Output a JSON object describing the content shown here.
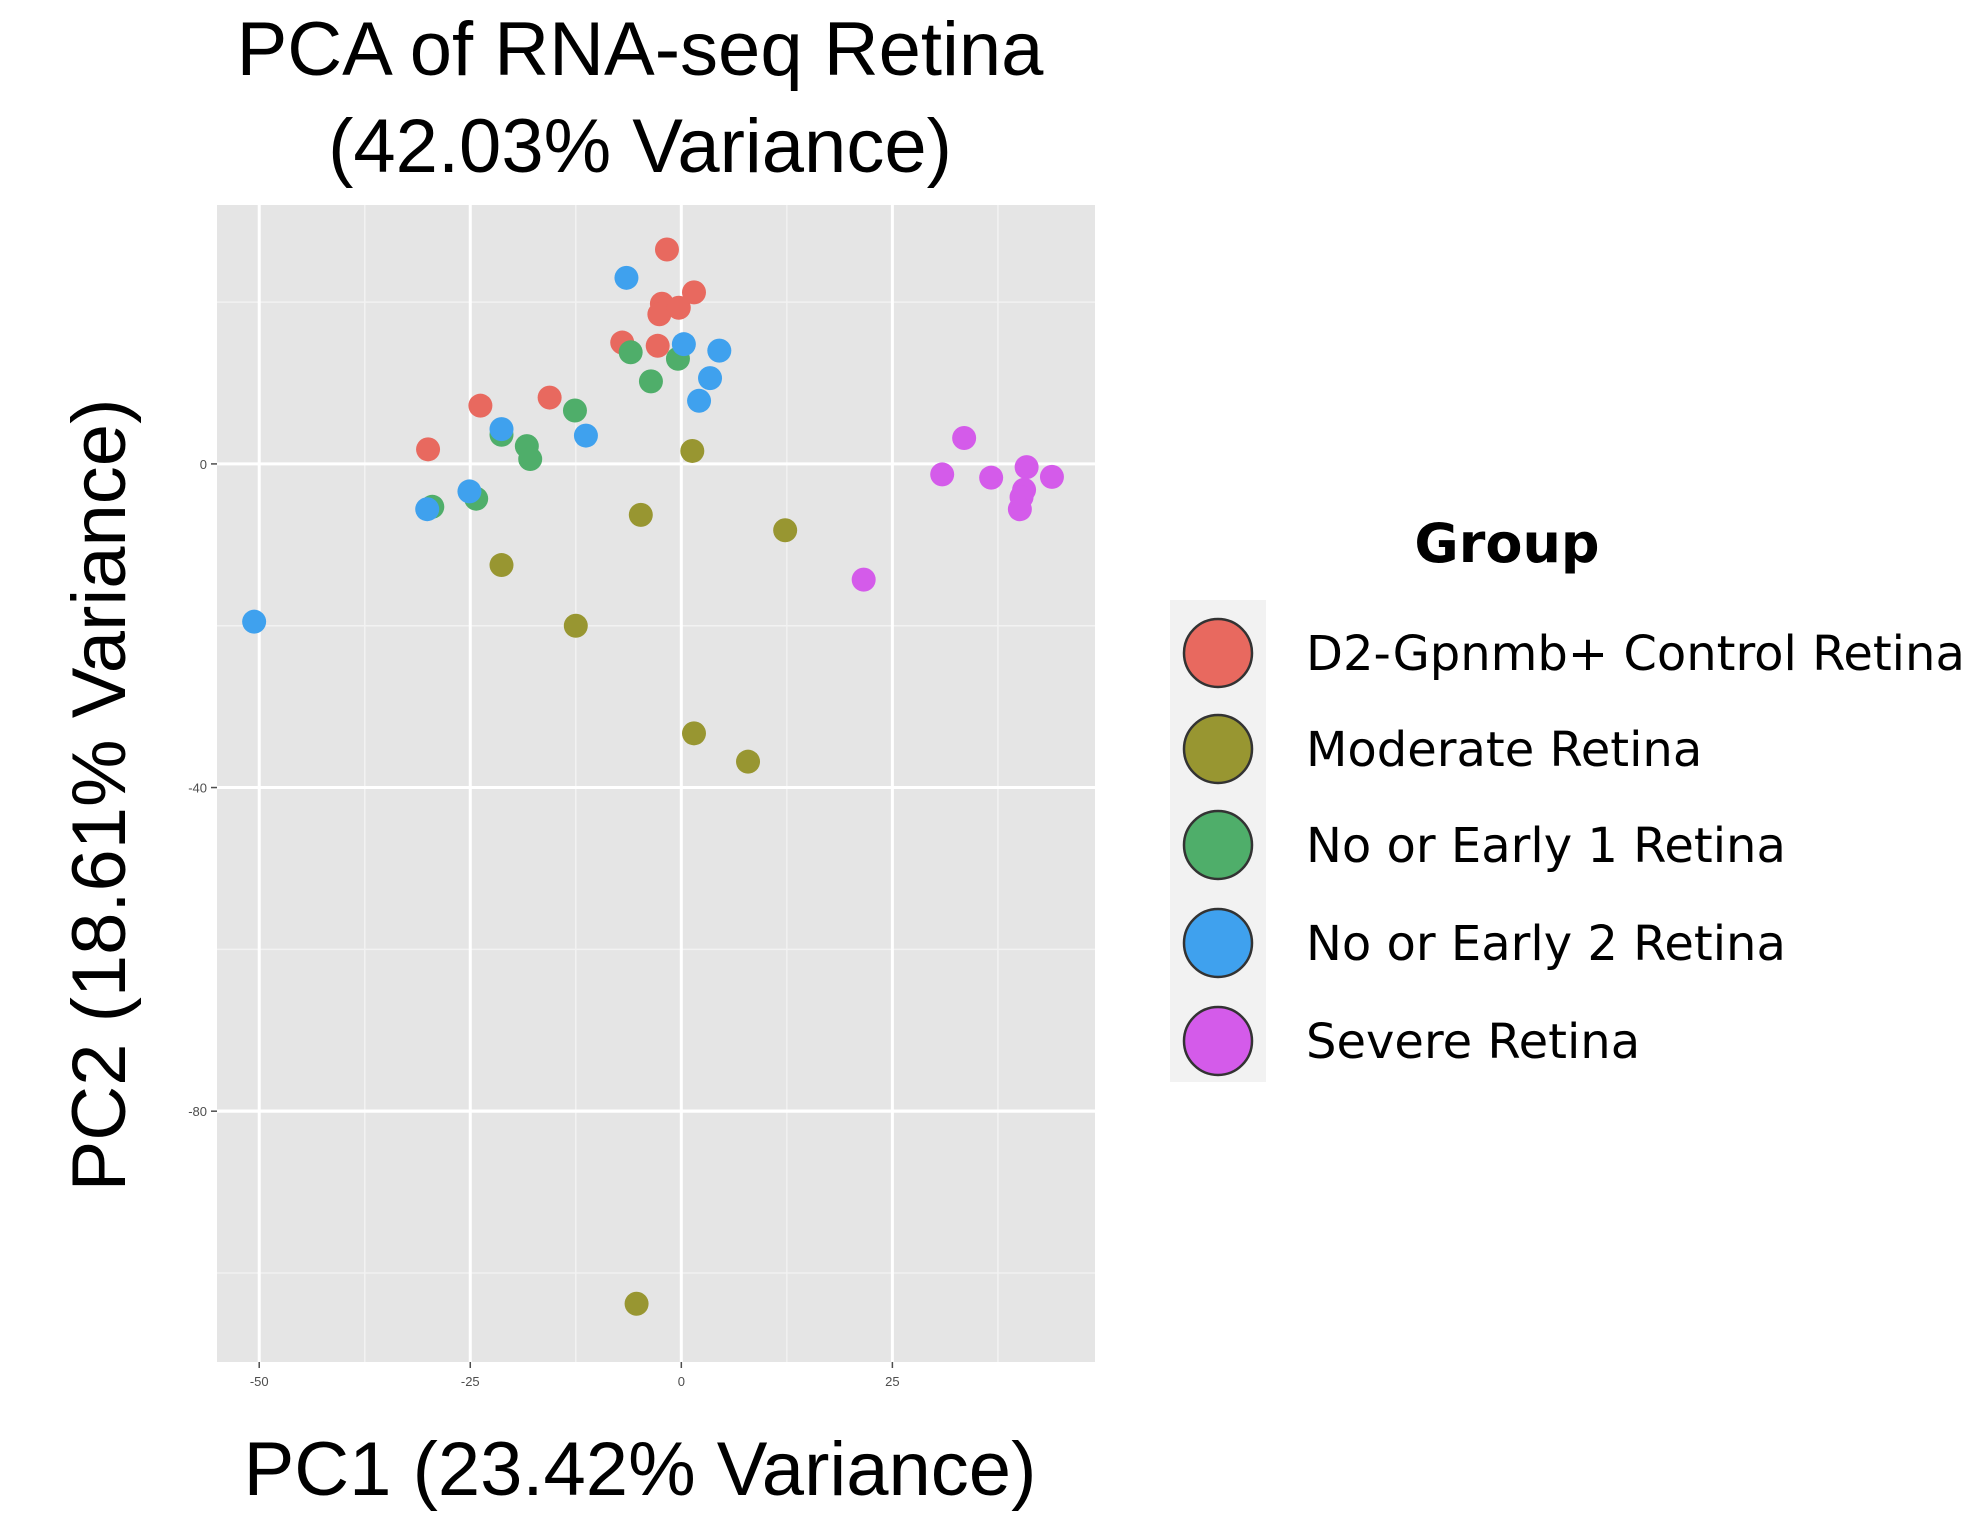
{
  "chart_data": {
    "type": "scatter",
    "title": [
      "PCA of RNA-seq Retina",
      "(42.03% Variance)"
    ],
    "xlabel": "PC1 (23.42% Variance)",
    "ylabel": "PC2 (18.61% Variance)",
    "xlim": [
      -55,
      49
    ],
    "ylim": [
      -111,
      32
    ],
    "x_ticks": [
      -50,
      -25,
      0,
      25
    ],
    "x_tick_labels": [
      "-50",
      "-25",
      "0",
      "25"
    ],
    "y_ticks": [
      0,
      -40,
      -80
    ],
    "y_tick_labels": [
      "0",
      "-40",
      "-80"
    ],
    "grid": true,
    "legend": {
      "title": "Group",
      "position": "right"
    },
    "series": [
      {
        "name": "D2-Gpnmb+ Control Retina",
        "color": "#E8695F",
        "points": [
          [
            -1.7,
            26.5
          ],
          [
            -2.3,
            19.8
          ],
          [
            -2.6,
            18.5
          ],
          [
            -0.3,
            19.3
          ],
          [
            1.5,
            21.2
          ],
          [
            -7.0,
            15.0
          ],
          [
            -2.8,
            14.6
          ],
          [
            -15.6,
            8.2
          ],
          [
            -23.8,
            7.2
          ],
          [
            -30.0,
            1.8
          ]
        ]
      },
      {
        "name": "Moderate Retina",
        "color": "#989631",
        "points": [
          [
            1.3,
            1.6
          ],
          [
            -4.8,
            -6.3
          ],
          [
            12.3,
            -8.2
          ],
          [
            -21.3,
            -12.5
          ],
          [
            -12.5,
            -20.0
          ],
          [
            1.5,
            -33.3
          ],
          [
            7.9,
            -36.8
          ],
          [
            -5.3,
            -103.8
          ]
        ]
      },
      {
        "name": "No or Early 1 Retina",
        "color": "#4FAE6A",
        "points": [
          [
            -6.0,
            13.8
          ],
          [
            -3.6,
            10.2
          ],
          [
            -0.4,
            13.0
          ],
          [
            -12.6,
            6.6
          ],
          [
            -21.3,
            3.6
          ],
          [
            -18.3,
            2.2
          ],
          [
            -17.9,
            0.6
          ],
          [
            -29.5,
            -5.3
          ],
          [
            -24.3,
            -4.3
          ]
        ]
      },
      {
        "name": "No or Early 2 Retina",
        "color": "#3FA1EE",
        "points": [
          [
            -6.5,
            23.0
          ],
          [
            0.3,
            14.8
          ],
          [
            4.5,
            14.0
          ],
          [
            3.4,
            10.6
          ],
          [
            2.1,
            7.8
          ],
          [
            -21.3,
            4.3
          ],
          [
            -11.3,
            3.5
          ],
          [
            -25.1,
            -3.4
          ],
          [
            -30.1,
            -5.6
          ],
          [
            -50.6,
            -19.5
          ]
        ]
      },
      {
        "name": "Severe Retina",
        "color": "#D45BEA",
        "points": [
          [
            33.5,
            3.2
          ],
          [
            30.9,
            -1.3
          ],
          [
            36.7,
            -1.7
          ],
          [
            40.9,
            -0.4
          ],
          [
            43.9,
            -1.6
          ],
          [
            40.6,
            -3.2
          ],
          [
            40.3,
            -4.1
          ],
          [
            40.1,
            -5.6
          ],
          [
            21.6,
            -14.3
          ]
        ]
      }
    ]
  }
}
